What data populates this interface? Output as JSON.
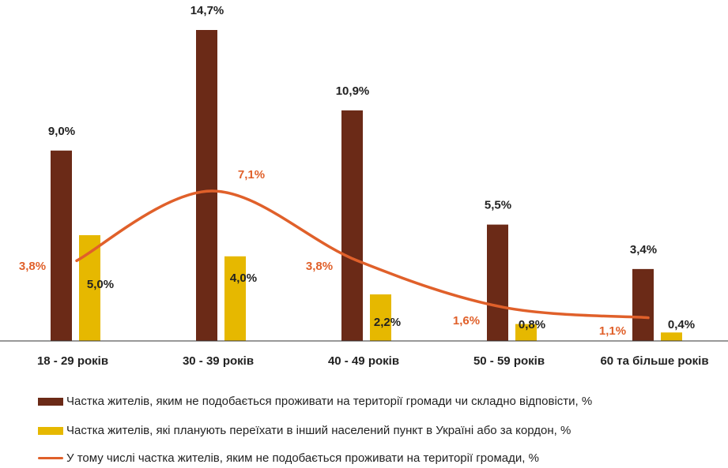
{
  "chart_data": {
    "type": "bar",
    "categories": [
      "18 - 29 років",
      "30 - 39 років",
      "40 - 49 років",
      "50 - 59 років",
      "60 та більше років"
    ],
    "series": [
      {
        "name": "Частка жителів, яким не подобається проживати на території громади чи складно відповісти, %",
        "type": "bar",
        "color": "#6b2a17",
        "values": [
          9.0,
          14.7,
          10.9,
          5.5,
          3.4
        ],
        "labels": [
          "9,0%",
          "14,7%",
          "10,9%",
          "5,5%",
          "3,4%"
        ]
      },
      {
        "name": "Частка жителів, які планують переїхати в інший населений пункт в Україні або за кордон, %",
        "type": "bar",
        "color": "#e6b800",
        "values": [
          5.0,
          4.0,
          2.2,
          0.8,
          0.4
        ],
        "labels": [
          "5,0%",
          "4,0%",
          "2,2%",
          "0,8%",
          "0,4%"
        ]
      },
      {
        "name": "У тому числі частка жителів, яким не подобається проживати на території громади, %",
        "type": "line",
        "color": "#e0602a",
        "values": [
          3.8,
          7.1,
          3.8,
          1.6,
          1.1
        ],
        "labels": [
          "3,8%",
          "7,1%",
          "3,8%",
          "1,6%",
          "1,1%"
        ]
      }
    ],
    "ylim": [
      0,
      15
    ],
    "grid": false,
    "legend_position": "bottom"
  }
}
